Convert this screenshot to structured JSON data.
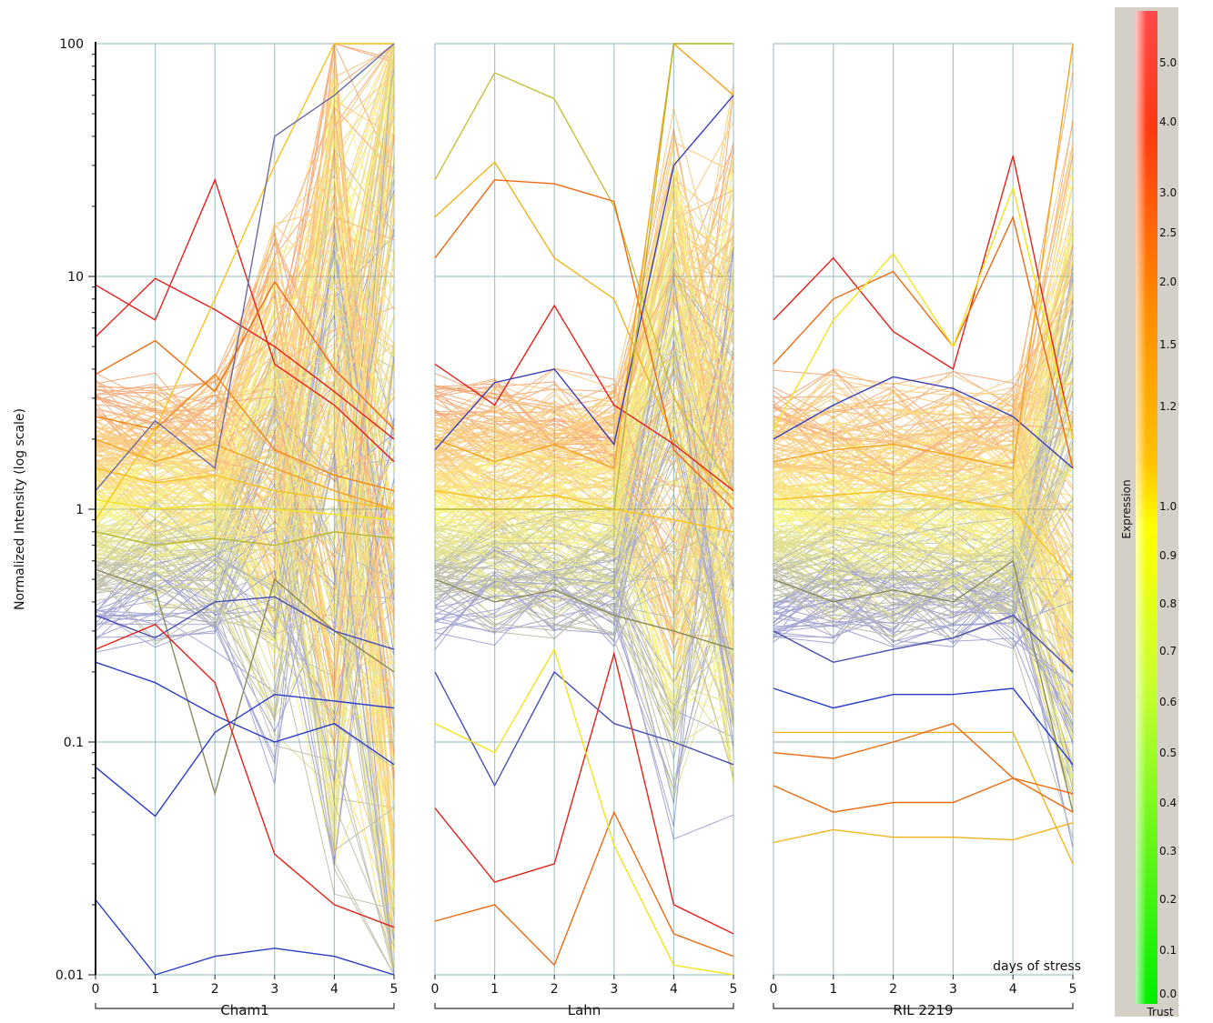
{
  "chart_data": {
    "type": "line",
    "ylabel": "Normalized Intensity (log scale)",
    "xlabel": "days of stress",
    "yscale": "log",
    "ylim": [
      0.01,
      100
    ],
    "y_ticks": [
      "0.01",
      "0.1",
      "1",
      "10",
      "100"
    ],
    "x_ticks": [
      "0",
      "1",
      "2",
      "3",
      "4",
      "5"
    ],
    "grid": true,
    "panels": [
      {
        "name": "Cham1",
        "series": [
          {
            "color": "#e5201a",
            "values": [
              9.2,
              6.5,
              26,
              4.2,
              2.8,
              1.6
            ]
          },
          {
            "color": "#e5201a",
            "values": [
              5.5,
              9.8,
              7.2,
              5.0,
              3.2,
              2.0
            ]
          },
          {
            "color": "#ee6a10",
            "values": [
              3.8,
              5.3,
              3.2,
              9.5,
              4.0,
              2.2
            ]
          },
          {
            "color": "#f08a12",
            "values": [
              2.5,
              2.2,
              3.8,
              1.8,
              1.4,
              1.2
            ]
          },
          {
            "color": "#f5a31c",
            "values": [
              2.0,
              1.6,
              1.9,
              1.5,
              1.2,
              1.0
            ]
          },
          {
            "color": "#f7c21a",
            "values": [
              1.5,
              1.3,
              1.4,
              1.2,
              1.1,
              1.0
            ]
          },
          {
            "color": "#f3e41a",
            "values": [
              1.1,
              1.0,
              1.05,
              1.0,
              0.95,
              0.9
            ]
          },
          {
            "color": "#b9b830",
            "values": [
              0.8,
              0.7,
              0.75,
              0.7,
              0.8,
              0.75
            ]
          },
          {
            "color": "#8a8a5a",
            "values": [
              0.55,
              0.45,
              0.06,
              0.5,
              0.3,
              0.2
            ]
          },
          {
            "color": "#4a4fb0",
            "values": [
              0.35,
              0.28,
              0.4,
              0.42,
              0.3,
              0.25
            ]
          },
          {
            "color": "#2a3cc8",
            "values": [
              0.22,
              0.18,
              0.13,
              0.1,
              0.12,
              0.08
            ]
          },
          {
            "color": "#2a3cc8",
            "values": [
              0.078,
              0.048,
              0.11,
              0.16,
              0.15,
              0.14
            ]
          },
          {
            "color": "#2a3cc8",
            "values": [
              0.021,
              0.01,
              0.012,
              0.013,
              0.012,
              0.01
            ]
          },
          {
            "color": "#e5201a",
            "values": [
              0.25,
              0.32,
              0.18,
              0.033,
              0.02,
              0.016
            ]
          },
          {
            "color": "#f7c21a",
            "values": [
              0.9,
              2.2,
              8,
              30,
              100,
              100
            ]
          },
          {
            "color": "#6a6aa0",
            "values": [
              1.2,
              2.4,
              1.5,
              40,
              60,
              100
            ]
          }
        ]
      },
      {
        "name": "Lahn",
        "series": [
          {
            "color": "#c8c03a",
            "values": [
              26,
              75,
              58,
              20,
              3,
              1.2
            ]
          },
          {
            "color": "#f0b51c",
            "values": [
              18,
              31,
              12,
              8,
              2,
              1.1
            ]
          },
          {
            "color": "#ee6a10",
            "values": [
              12,
              26,
              25,
              21,
              1.8,
              1.0
            ]
          },
          {
            "color": "#e5201a",
            "values": [
              4.2,
              2.8,
              7.5,
              2.8,
              1.9,
              1.2
            ]
          },
          {
            "color": "#f5a31c",
            "values": [
              2.0,
              1.6,
              1.9,
              1.5,
              100,
              60
            ]
          },
          {
            "color": "#f7c21a",
            "values": [
              1.2,
              1.1,
              1.15,
              1.0,
              0.9,
              0.8
            ]
          },
          {
            "color": "#8a8a5a",
            "values": [
              0.5,
              0.4,
              0.45,
              0.35,
              0.3,
              0.25
            ]
          },
          {
            "color": "#4a4fb0",
            "values": [
              0.2,
              0.065,
              0.2,
              0.12,
              0.1,
              0.08
            ]
          },
          {
            "color": "#e5201a",
            "values": [
              0.052,
              0.025,
              0.03,
              0.24,
              0.02,
              0.015
            ]
          },
          {
            "color": "#ee6a10",
            "values": [
              0.017,
              0.02,
              0.011,
              0.05,
              0.015,
              0.012
            ]
          },
          {
            "color": "#f3e41a",
            "values": [
              0.12,
              0.09,
              0.25,
              0.036,
              0.011,
              0.01
            ]
          },
          {
            "color": "#3a3fb8",
            "values": [
              1.8,
              3.5,
              4.0,
              1.9,
              30,
              60
            ]
          },
          {
            "color": "#b9b830",
            "values": [
              1.0,
              1.0,
              1.0,
              1.0,
              100,
              100
            ]
          }
        ]
      },
      {
        "name": "RIL 2219",
        "series": [
          {
            "color": "#e5201a",
            "values": [
              6.5,
              12,
              5.8,
              4.0,
              33,
              2.0
            ]
          },
          {
            "color": "#ee6a10",
            "values": [
              4.2,
              8.0,
              10.5,
              5.0,
              18,
              1.5
            ]
          },
          {
            "color": "#f3e41a",
            "values": [
              2.2,
              6.5,
              12.5,
              5.0,
              24,
              2.0
            ]
          },
          {
            "color": "#3a3fb8",
            "values": [
              2.0,
              2.8,
              3.7,
              3.3,
              2.5,
              1.5
            ]
          },
          {
            "color": "#f5a31c",
            "values": [
              1.6,
              1.8,
              1.9,
              1.7,
              1.5,
              100
            ]
          },
          {
            "color": "#f7c21a",
            "values": [
              1.1,
              1.15,
              1.2,
              1.1,
              1.0,
              0.5
            ]
          },
          {
            "color": "#8a8a5a",
            "values": [
              0.5,
              0.4,
              0.45,
              0.4,
              0.6,
              0.05
            ]
          },
          {
            "color": "#4a4fb0",
            "values": [
              0.3,
              0.22,
              0.25,
              0.28,
              0.35,
              0.2
            ]
          },
          {
            "color": "#2a3cc8",
            "values": [
              0.17,
              0.14,
              0.16,
              0.16,
              0.17,
              0.08
            ]
          },
          {
            "color": "#f0b51c",
            "values": [
              0.11,
              0.11,
              0.11,
              0.11,
              0.11,
              0.03
            ]
          },
          {
            "color": "#ee6a10",
            "values": [
              0.09,
              0.085,
              0.1,
              0.12,
              0.07,
              0.05
            ]
          },
          {
            "color": "#ee6a10",
            "values": [
              0.065,
              0.05,
              0.055,
              0.055,
              0.07,
              0.06
            ]
          },
          {
            "color": "#f0b51c",
            "values": [
              0.037,
              0.042,
              0.039,
              0.039,
              0.038,
              0.045
            ]
          }
        ]
      }
    ],
    "colorbar": {
      "title": "Expression",
      "bottom_label": "Trust",
      "labels": [
        "5.0",
        "4.0",
        "3.0",
        "2.5",
        "2.0",
        "1.5",
        "1.2",
        "1.0",
        "0.9",
        "0.8",
        "0.7",
        "0.6",
        "0.5",
        "0.4",
        "0.3",
        "0.2",
        "0.1",
        "0.0"
      ]
    }
  }
}
